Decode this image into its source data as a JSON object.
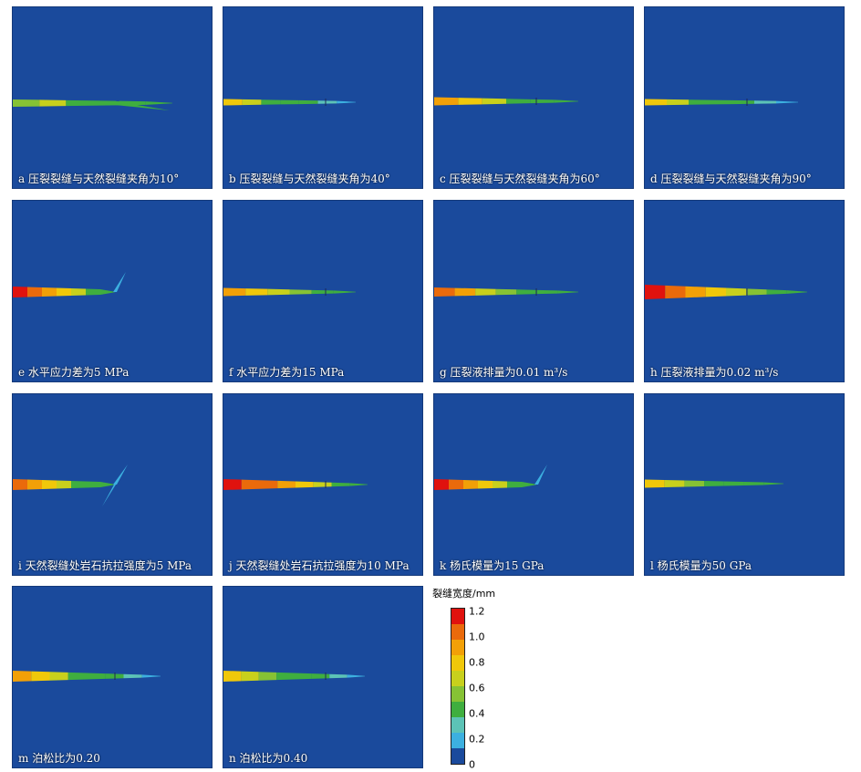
{
  "colors": {
    "background": "#1a4a9c",
    "scale": [
      "#1a4a9c",
      "#3cb0e0",
      "#5cc3b6",
      "#3fae3f",
      "#86c234",
      "#c8d01c",
      "#f0c80a",
      "#f2a007",
      "#ea6a0b",
      "#e0120e"
    ]
  },
  "panels": [
    {
      "caption": "a 压裂裂缝与天然裂缝夹角为10°"
    },
    {
      "caption": "b 压裂裂缝与天然裂缝夹角为40°"
    },
    {
      "caption": "c 压裂裂缝与天然裂缝夹角为60°"
    },
    {
      "caption": "d 压裂裂缝与天然裂缝夹角为90°"
    },
    {
      "caption": "e 水平应力差为5 MPa"
    },
    {
      "caption": "f 水平应力差为15 MPa"
    },
    {
      "caption": "g 压裂液排量为0.01 m³/s"
    },
    {
      "caption": "h 压裂液排量为0.02 m³/s"
    },
    {
      "caption": "i 天然裂缝处岩石抗拉强度为5 MPa"
    },
    {
      "caption": "j 天然裂缝处岩石抗拉强度为10 MPa"
    },
    {
      "caption": "k 杨氏模量为15 GPa"
    },
    {
      "caption": "l 杨氏模量为50 GPa"
    },
    {
      "caption": "m 泊松比为0.20"
    },
    {
      "caption": "n 泊松比为0.40"
    }
  ],
  "legend": {
    "title": "裂缝宽度/mm",
    "ticks": [
      "1.2",
      "1.0",
      "0.8",
      "0.6",
      "0.4",
      "0.2",
      "0"
    ]
  }
}
